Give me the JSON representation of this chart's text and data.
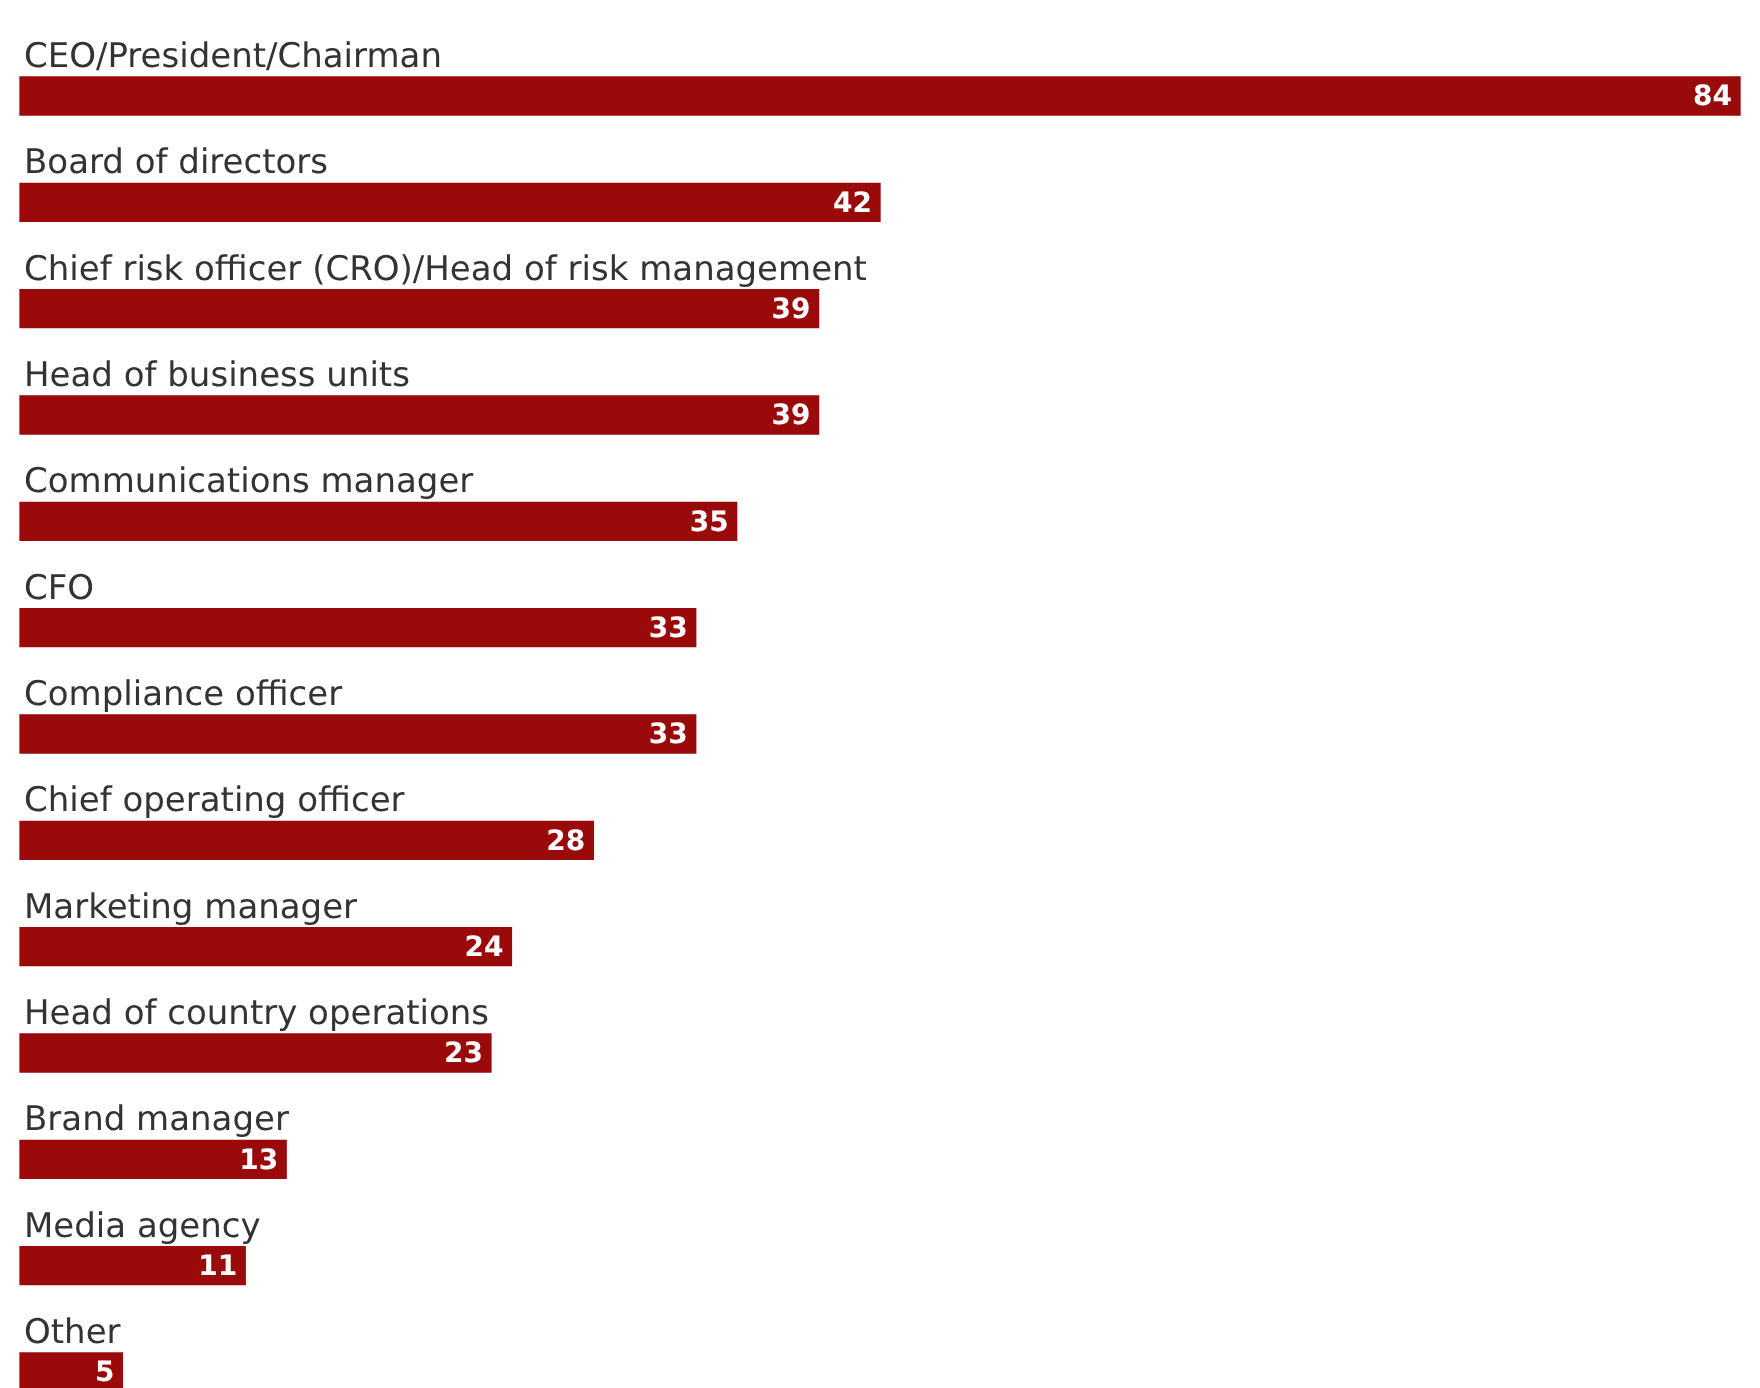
{
  "chart_data": {
    "type": "bar",
    "orientation": "horizontal",
    "data_labels": true,
    "color": "#9b0a0a",
    "categories": [
      "CEO/President/Chairman",
      "Board of directors",
      "Chief risk officer (CRO)/Head of risk management",
      "Head of business units",
      "Communications manager",
      "CFO",
      "Compliance officer",
      "Chief operating officer",
      "Marketing manager",
      "Head of country operations",
      "Brand manager",
      "Media agency",
      "Other"
    ],
    "values": [
      84,
      42,
      39,
      39,
      35,
      33,
      33,
      28,
      24,
      23,
      13,
      11,
      5
    ]
  }
}
